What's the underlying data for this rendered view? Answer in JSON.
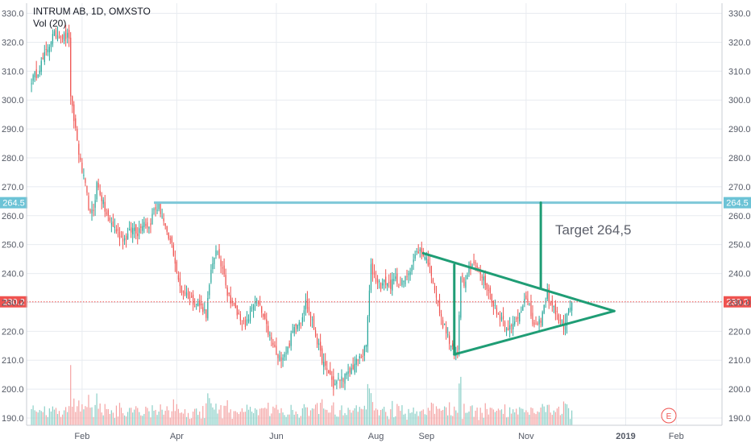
{
  "header": {
    "symbol_line": "INTRUM AB, 1D, OMXSTO",
    "volume_label": "Vol (20)"
  },
  "annotation_text": "Target 264,5",
  "price_badges": {
    "target": "264.5",
    "last": "230.2"
  },
  "event_marker": "E",
  "colors": {
    "up": "#26a69a",
    "down": "#ef5350",
    "vol_up": "#8dd0c8",
    "vol_down": "#f4a4a4",
    "pattern": "#1f9d75",
    "target_line": "#7ec8d8",
    "last_line": "#ef5350",
    "grid": "#e8ebf0",
    "axis_text": "#555a66"
  },
  "chart_data": {
    "type": "candlestick",
    "title": "INTRUM AB, 1D, OMXSTO",
    "y_ticks": [
      190,
      200,
      210,
      220,
      230,
      240,
      250,
      260,
      270,
      280,
      290,
      300,
      310,
      320,
      330
    ],
    "y_tick_labels": [
      "190.0",
      "200.0",
      "210.0",
      "220.0",
      "230.0",
      "240.0",
      "250.0",
      "260.0",
      "270.0",
      "280.0",
      "290.0",
      "300.0",
      "310.0",
      "320.0",
      "330.0"
    ],
    "ylim": [
      187.5,
      333.5
    ],
    "x_tick_labels": [
      "Feb",
      "Apr",
      "Jun",
      "Aug",
      "Sep",
      "Nov",
      "2019",
      "Feb"
    ],
    "x_tick_days": [
      34,
      92,
      153,
      214,
      245,
      306,
      367,
      398
    ],
    "xlim": [
      0,
      426
    ],
    "last_price": 230.2,
    "target_price": 264.5,
    "grid": true,
    "close_path": [
      [
        3,
        307
      ],
      [
        6,
        309
      ],
      [
        10,
        314
      ],
      [
        13,
        318
      ],
      [
        16,
        322
      ],
      [
        19,
        323
      ],
      [
        22,
        322
      ],
      [
        26,
        322
      ],
      [
        27,
        300
      ],
      [
        30,
        290
      ],
      [
        33,
        278
      ],
      [
        36,
        270
      ],
      [
        39,
        260
      ],
      [
        41,
        262
      ],
      [
        43,
        271
      ],
      [
        45,
        268
      ],
      [
        48,
        262
      ],
      [
        51,
        258
      ],
      [
        54,
        256
      ],
      [
        57,
        253
      ],
      [
        60,
        252
      ],
      [
        63,
        254
      ],
      [
        66,
        256
      ],
      [
        68,
        254
      ],
      [
        70,
        257
      ],
      [
        72,
        258
      ],
      [
        75,
        256
      ],
      [
        78,
        262
      ],
      [
        81,
        263
      ],
      [
        83,
        260
      ],
      [
        86,
        253
      ],
      [
        89,
        250
      ],
      [
        91,
        244
      ],
      [
        93,
        237
      ],
      [
        95,
        234
      ],
      [
        98,
        233
      ],
      [
        101,
        231
      ],
      [
        103,
        230
      ],
      [
        106,
        229
      ],
      [
        108,
        228
      ],
      [
        110,
        226
      ],
      [
        113,
        240
      ],
      [
        116,
        249
      ],
      [
        118,
        244
      ],
      [
        121,
        241
      ],
      [
        123,
        233
      ],
      [
        126,
        230
      ],
      [
        129,
        226
      ],
      [
        132,
        224
      ],
      [
        134,
        221
      ],
      [
        137,
        227
      ],
      [
        140,
        231
      ],
      [
        143,
        228
      ],
      [
        146,
        223
      ],
      [
        149,
        218
      ],
      [
        152,
        214
      ],
      [
        154,
        210
      ],
      [
        157,
        212
      ],
      [
        160,
        214
      ],
      [
        162,
        218
      ],
      [
        165,
        223
      ],
      [
        168,
        224
      ],
      [
        171,
        230
      ],
      [
        174,
        225
      ],
      [
        177,
        219
      ],
      [
        180,
        212
      ],
      [
        183,
        207
      ],
      [
        186,
        205
      ],
      [
        188,
        201
      ],
      [
        191,
        203
      ],
      [
        194,
        204
      ],
      [
        197,
        205
      ],
      [
        200,
        208
      ],
      [
        203,
        210
      ],
      [
        206,
        212
      ],
      [
        208,
        215
      ],
      [
        209,
        225
      ],
      [
        211,
        242
      ],
      [
        214,
        238
      ],
      [
        217,
        236
      ],
      [
        220,
        237
      ],
      [
        223,
        236
      ],
      [
        226,
        238
      ],
      [
        229,
        236
      ],
      [
        232,
        238
      ],
      [
        235,
        242
      ],
      [
        238,
        246
      ],
      [
        240,
        248
      ],
      [
        243,
        247
      ],
      [
        246,
        244
      ],
      [
        249,
        238
      ],
      [
        251,
        232
      ],
      [
        254,
        224
      ],
      [
        257,
        220
      ],
      [
        259,
        216
      ],
      [
        262,
        212
      ],
      [
        264,
        213
      ],
      [
        266,
        240
      ],
      [
        268,
        237
      ],
      [
        271,
        242
      ],
      [
        274,
        244
      ],
      [
        277,
        241
      ],
      [
        280,
        238
      ],
      [
        283,
        234
      ],
      [
        286,
        230
      ],
      [
        288,
        226
      ],
      [
        291,
        225
      ],
      [
        294,
        222
      ],
      [
        297,
        221
      ],
      [
        300,
        224
      ],
      [
        303,
        228
      ],
      [
        305,
        232
      ],
      [
        308,
        228
      ],
      [
        310,
        223
      ],
      [
        313,
        221
      ],
      [
        316,
        226
      ],
      [
        319,
        233
      ],
      [
        321,
        230
      ],
      [
        324,
        227
      ],
      [
        326,
        224
      ],
      [
        329,
        222
      ],
      [
        332,
        227
      ],
      [
        334,
        230
      ]
    ],
    "volume_series": {
      "name": "Vol (20)",
      "values": "daily bars, spikes near Feb, Apr, Aug and Sep"
    }
  }
}
